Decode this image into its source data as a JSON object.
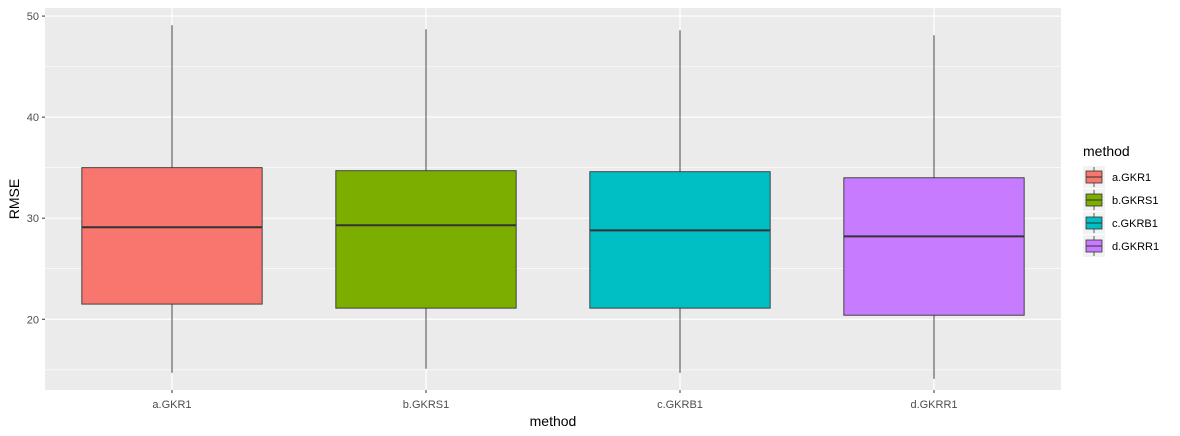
{
  "chart_data": {
    "type": "boxplot",
    "title": "",
    "xlabel": "method",
    "ylabel": "RMSE",
    "ylim": [
      13.0,
      50.8
    ],
    "yticks": [
      20,
      30,
      40,
      50
    ],
    "grid": true,
    "legend": {
      "title": "method",
      "placement": "right"
    },
    "categories": [
      "a.GKR1",
      "b.GKRS1",
      "c.GKRB1",
      "d.GKRR1"
    ],
    "series": [
      {
        "category": "a.GKR1",
        "min": 14.7,
        "q1": 21.5,
        "median": 29.1,
        "q3": 35.0,
        "max": 49.1,
        "color": "#F8766D"
      },
      {
        "category": "b.GKRS1",
        "min": 15.1,
        "q1": 21.1,
        "median": 29.3,
        "q3": 34.7,
        "max": 48.7,
        "color": "#7CAE00"
      },
      {
        "category": "c.GKRB1",
        "min": 14.7,
        "q1": 21.1,
        "median": 28.8,
        "q3": 34.6,
        "max": 48.6,
        "color": "#00BFC4"
      },
      {
        "category": "d.GKRR1",
        "min": 14.1,
        "q1": 20.4,
        "median": 28.2,
        "q3": 34.0,
        "max": 48.1,
        "color": "#C77CFF"
      }
    ]
  }
}
